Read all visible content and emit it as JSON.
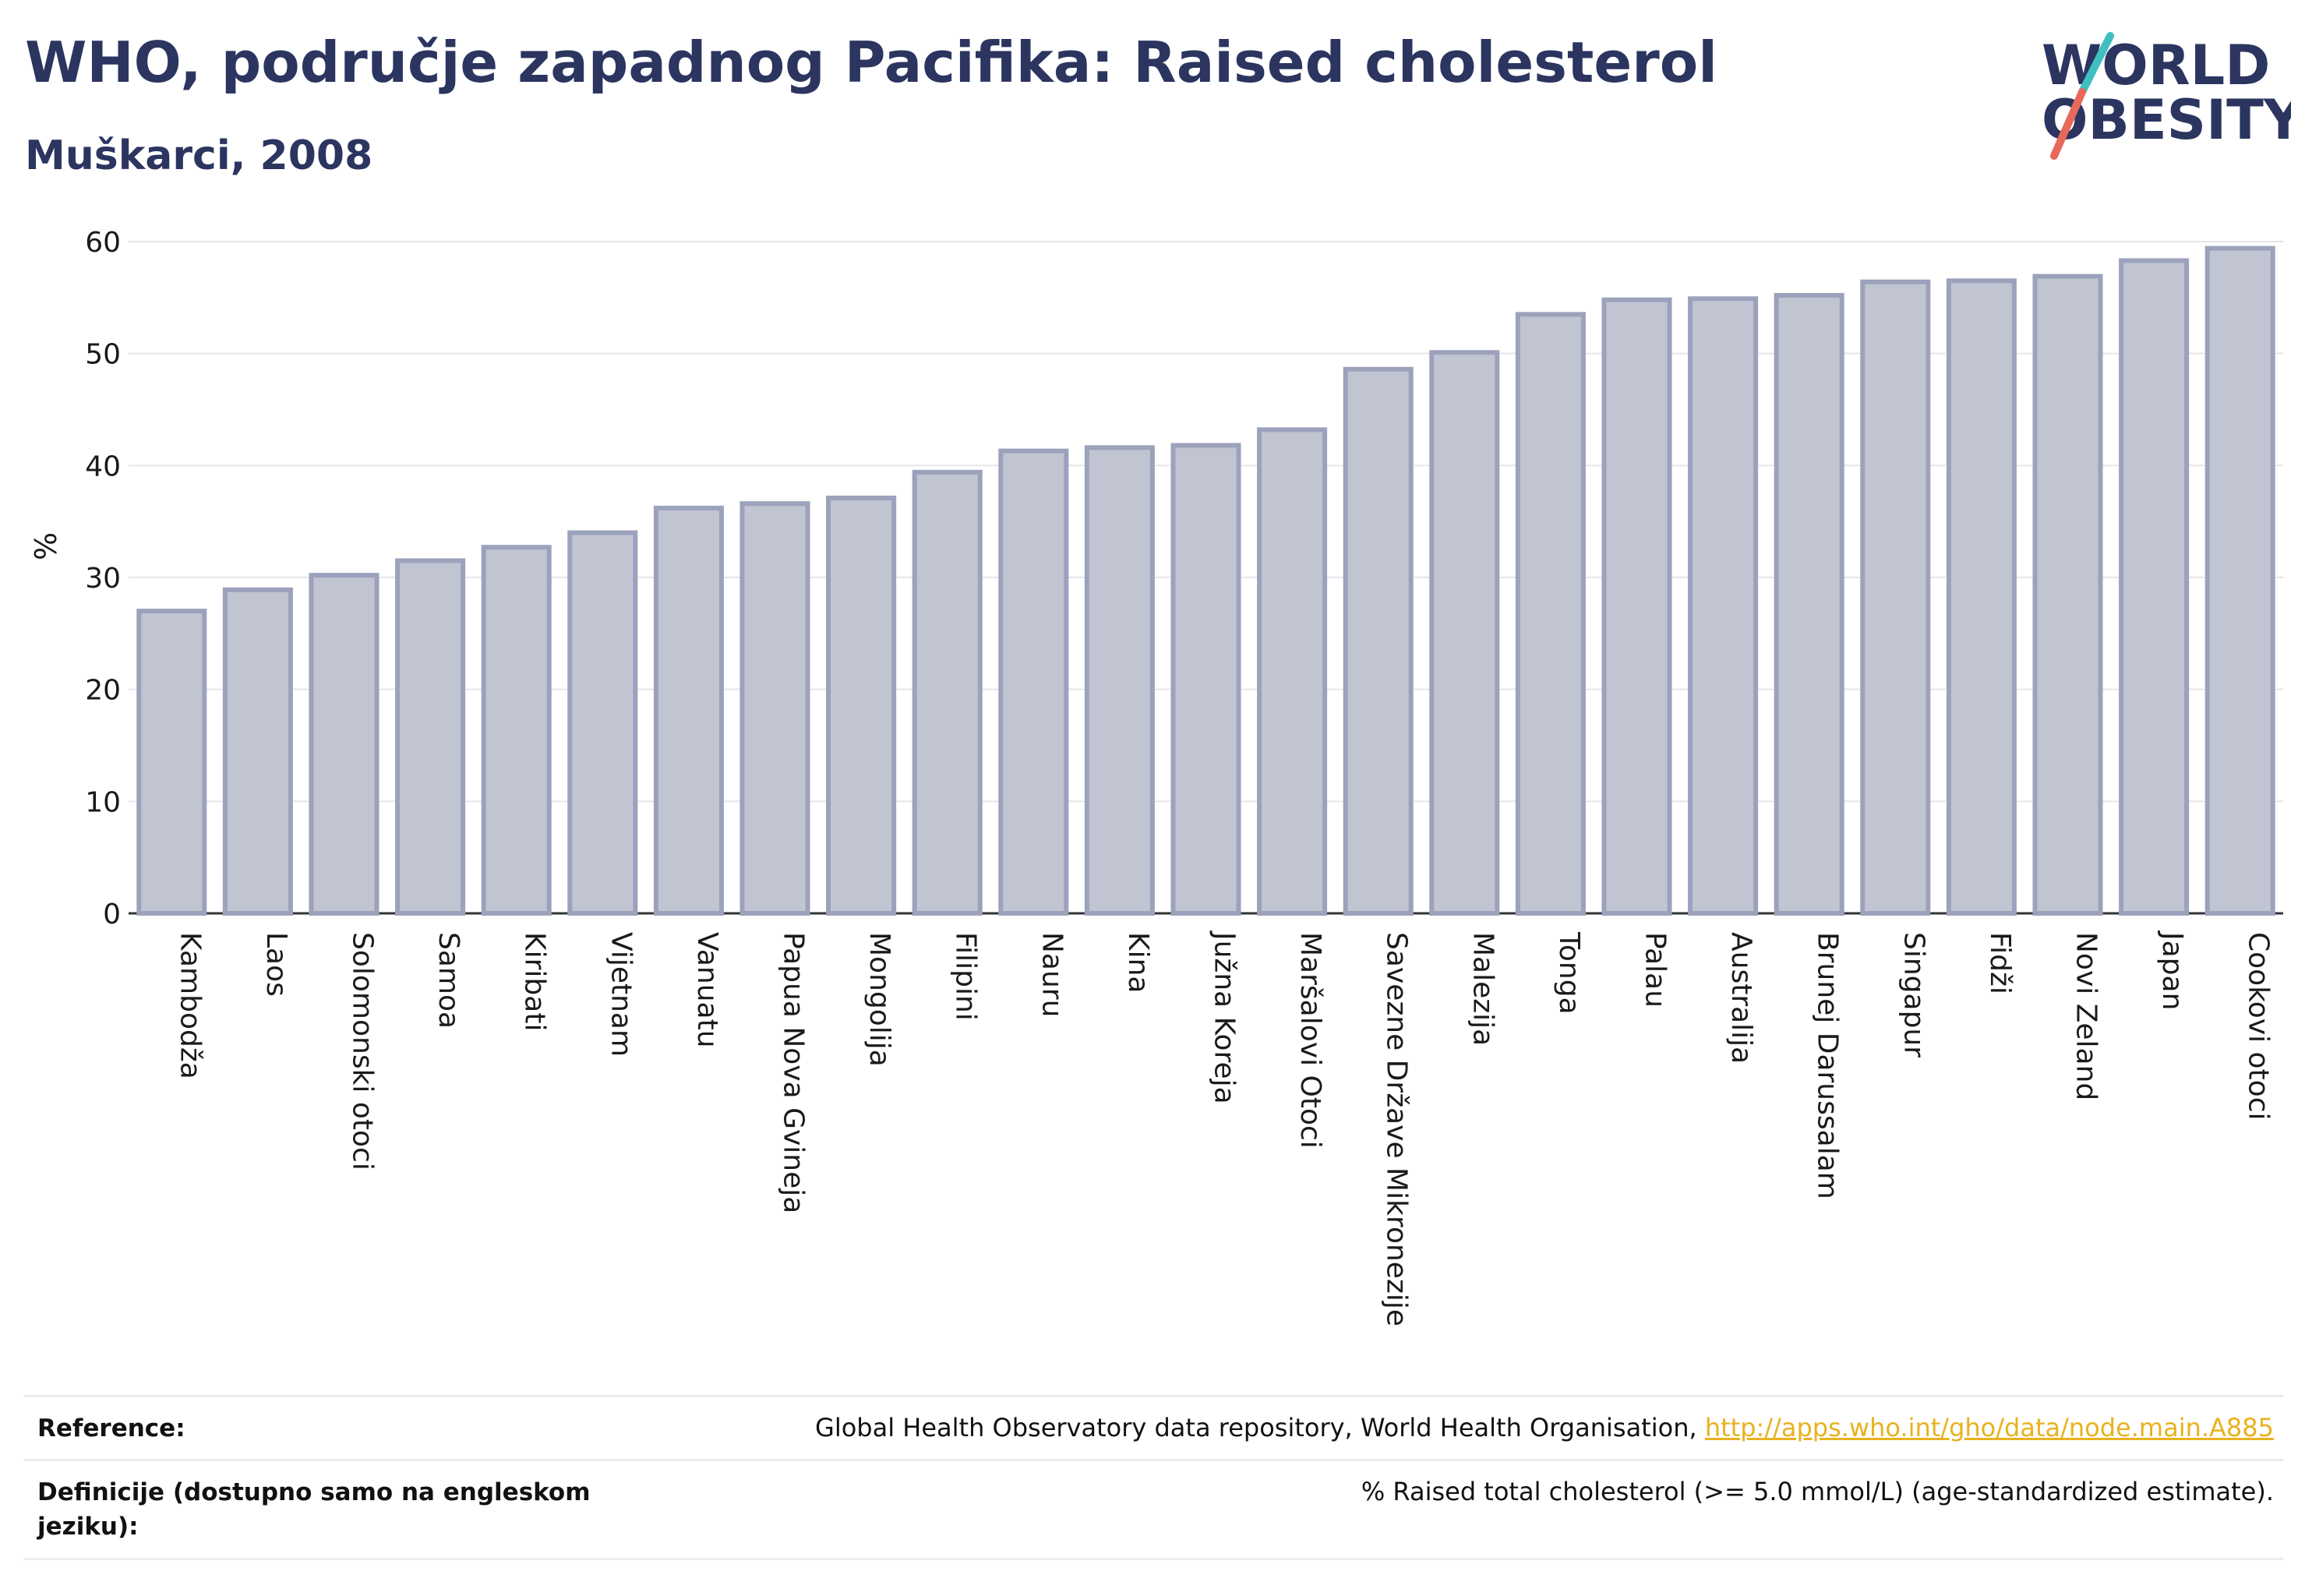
{
  "header": {
    "title": "WHO, područje zapadnog Pacifika: Raised cholesterol",
    "subtitle": "Muškarci, 2008"
  },
  "logo": {
    "line1": "WORLD",
    "line2": "OBESITY",
    "text_color": "#2b3560",
    "slash_colors": [
      "#3fbfbf",
      "#e8685a"
    ]
  },
  "chart_data": {
    "type": "bar",
    "ylabel": "%",
    "ylim": [
      0,
      60
    ],
    "yticks": [
      0,
      10,
      20,
      30,
      40,
      50,
      60
    ],
    "grid": true,
    "bar_fill": "#c1c4d1",
    "bar_stroke": "#9ca2bc",
    "categories": [
      "Kambodža",
      "Laos",
      "Solomonski otoci",
      "Samoa",
      "Kiribati",
      "Vijetnam",
      "Vanuatu",
      "Papua Nova Gvineja",
      "Mongolija",
      "Filipini",
      "Nauru",
      "Kina",
      "Južna Koreja",
      "Maršalovi Otoci",
      "Savezne Države Mikronezije",
      "Malezija",
      "Tonga",
      "Palau",
      "Australija",
      "Brunej Darussalam",
      "Singapur",
      "Fidži",
      "Novi Zeland",
      "Japan",
      "Cookovi otoci"
    ],
    "values": [
      27.0,
      28.9,
      30.2,
      31.5,
      32.7,
      34.0,
      36.2,
      36.6,
      37.1,
      39.4,
      41.3,
      41.6,
      41.8,
      43.2,
      48.6,
      50.1,
      53.5,
      54.8,
      54.9,
      55.2,
      56.4,
      56.5,
      56.9,
      58.3,
      59.4
    ]
  },
  "footer": {
    "reference_label": "Reference:",
    "reference_text": "Global Health Observatory data repository, World Health Organisation, ",
    "reference_link": "http://apps.who.int/gho/data/node.main.A885",
    "definition_label": "Definicije (dostupno samo na engleskom jeziku):",
    "definition_text": "% Raised total cholesterol (>= 5.0 mmol/L) (age-standardized estimate)."
  }
}
